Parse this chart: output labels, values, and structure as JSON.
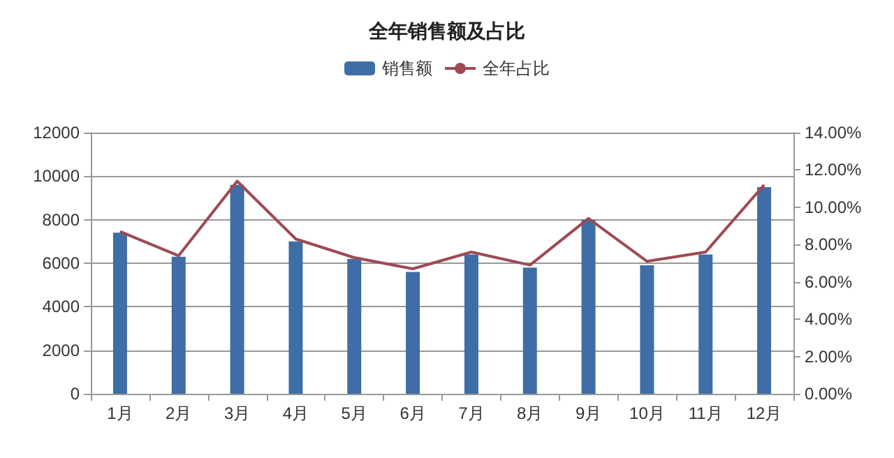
{
  "chart_data": {
    "type": "bar",
    "title": "全年销售额及占比",
    "categories": [
      "1月",
      "2月",
      "3月",
      "4月",
      "5月",
      "6月",
      "7月",
      "8月",
      "9月",
      "10月",
      "11月",
      "12月"
    ],
    "series": [
      {
        "name": "销售额",
        "color": "#3e6ea5",
        "values": [
          7400,
          6300,
          9600,
          7000,
          6200,
          5600,
          6400,
          5800,
          8000,
          5900,
          6400,
          9500
        ]
      },
      {
        "name": "全年占比",
        "type": "line",
        "axis": "y2",
        "color": "#9e4a55",
        "values": [
          8.7,
          7.4,
          11.4,
          8.3,
          7.3,
          6.7,
          7.6,
          6.9,
          9.4,
          7.1,
          7.6,
          11.2
        ]
      }
    ],
    "ylim": [
      0,
      12000
    ],
    "yticks": [
      0,
      2000,
      4000,
      6000,
      8000,
      10000,
      12000
    ],
    "y2lim": [
      0,
      14
    ],
    "y2ticks": [
      {
        "value": 0,
        "label": "0.00%"
      },
      {
        "value": 2,
        "label": "2.00%"
      },
      {
        "value": 4,
        "label": "4.00%"
      },
      {
        "value": 6,
        "label": "6.00%"
      },
      {
        "value": 8,
        "label": "8.00%"
      },
      {
        "value": 10,
        "label": "10.00%"
      },
      {
        "value": 12,
        "label": "12.00%"
      },
      {
        "value": 14,
        "label": "14.00%"
      }
    ],
    "grid": "y",
    "legend": "top",
    "marker": "none"
  }
}
